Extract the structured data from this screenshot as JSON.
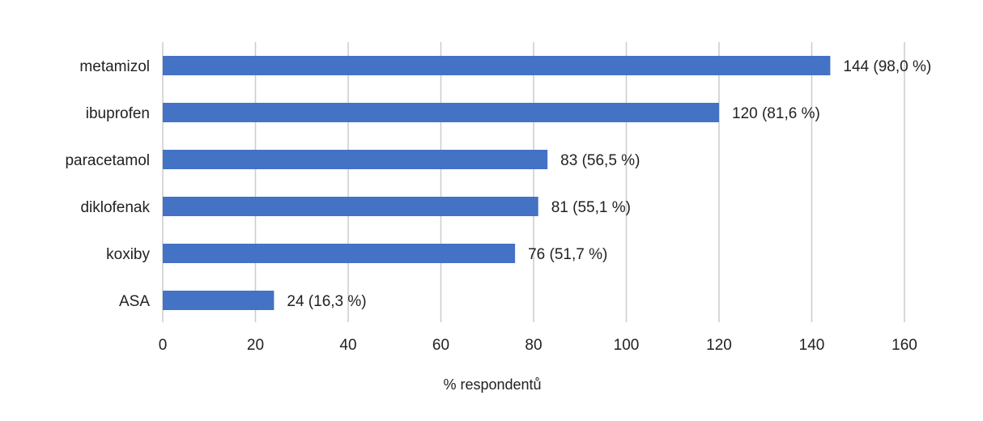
{
  "chart_data": {
    "type": "bar",
    "orientation": "horizontal",
    "categories": [
      "metamizol",
      "ibuprofen",
      "paracetamol",
      "diklofenak",
      "koxiby",
      "ASA"
    ],
    "values": [
      144,
      120,
      83,
      81,
      76,
      24
    ],
    "data_labels": [
      "144 (98,0 %)",
      "120 (81,6 %)",
      "83 (56,5 %)",
      "81 (55,1 %)",
      "76 (51,7 %)",
      "24 (16,3 %)"
    ],
    "xlabel": "% respondentů",
    "ylabel": "",
    "xlim": [
      0,
      160
    ],
    "x_ticks": [
      0,
      20,
      40,
      60,
      80,
      100,
      120,
      140,
      160
    ],
    "grid": true,
    "bar_color": "#4472c4",
    "grid_color": "#cccccc",
    "legend": "none"
  }
}
